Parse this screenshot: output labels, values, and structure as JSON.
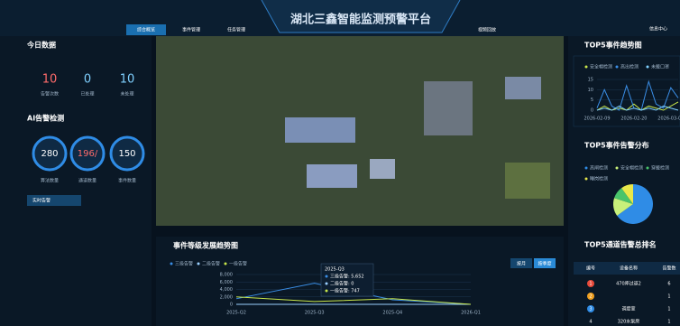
{
  "header": {
    "title": "湖北三鑫智能监测预警平台",
    "tabs": [
      "综合概览",
      "事件管理",
      "任务管理",
      "视频回放"
    ],
    "user": "信息中心"
  },
  "today": {
    "title": "今日数据",
    "items": [
      {
        "value": 10,
        "label": "告警次数"
      },
      {
        "value": 0,
        "label": "已处理"
      },
      {
        "value": 10,
        "label": "未处理"
      }
    ]
  },
  "ai": {
    "title": "AI告警检测",
    "items": [
      {
        "value": "280",
        "label": "算法数量"
      },
      {
        "value": "196/",
        "label": "通道数量"
      },
      {
        "value": "150",
        "label": "事件数量"
      }
    ],
    "button": "实时告警"
  },
  "trend": {
    "type": "line",
    "title": "事件等级发展趋势图",
    "buttons": [
      "按月",
      "按季度"
    ],
    "categories": [
      "2025-Q2",
      "2025-Q3",
      "2025-Q4",
      "2026-Q1"
    ],
    "series": [
      {
        "name": "三级告警",
        "color": "#3a8ee6",
        "values": [
          1500,
          5652,
          1200,
          0
        ]
      },
      {
        "name": "二级告警",
        "color": "#9ad0ff",
        "values": [
          0,
          0,
          0,
          0
        ]
      },
      {
        "name": "一级告警",
        "color": "#c8e64a",
        "values": [
          2000,
          747,
          1500,
          0
        ]
      }
    ],
    "ylim": [
      0,
      8000
    ],
    "yticks": [
      {
        "value": 0,
        "label": "0"
      },
      {
        "value": 2000,
        "label": "2,000"
      },
      {
        "value": 4000,
        "label": "4,000"
      },
      {
        "value": 6000,
        "label": "6,000"
      },
      {
        "value": 8000,
        "label": "8,000"
      }
    ],
    "tooltip": {
      "title": "2025-Q3",
      "items": [
        "三级告警: 5,652",
        "二级告警: 0",
        "一级告警: 747"
      ]
    }
  },
  "top5trend": {
    "type": "line",
    "title": "TOP5事件趋势图",
    "categories": [
      "2026-02-09",
      null,
      null,
      null,
      null,
      "2026-02-20",
      null,
      null,
      null,
      null,
      "2026-03-03",
      null
    ],
    "series": [
      {
        "name": "安全帽检测",
        "color": "#c8e64a",
        "values": [
          0,
          2,
          0,
          1,
          0,
          3,
          0,
          2,
          1,
          0,
          2,
          4
        ]
      },
      {
        "name": "高出检测",
        "color": "#3a8ee6",
        "values": [
          1,
          10,
          2,
          0,
          12,
          1,
          0,
          14,
          3,
          1,
          11,
          6
        ]
      },
      {
        "name": "未戴口罩",
        "color": "#7fd0ff",
        "values": [
          0,
          1,
          0,
          2,
          0,
          1,
          0,
          1,
          0,
          2,
          1,
          0
        ]
      }
    ],
    "ylim": [
      0,
      15
    ],
    "yticks": [
      0,
      5,
      10,
      15
    ]
  },
  "dist": {
    "type": "pie",
    "title": "TOP5事件告警分布",
    "series": [
      {
        "name": "高闸检测",
        "color": "#2f8ce6",
        "value": 65
      },
      {
        "name": "安全帽检测",
        "color": "#c8f07a",
        "value": 15
      },
      {
        "name": "穿戴检测",
        "color": "#49c46a",
        "value": 10
      },
      {
        "name": "睡岗检测",
        "color": "#e8e84a",
        "value": 10
      }
    ]
  },
  "ranking": {
    "title": "TOP5通道告警总排名",
    "columns": [
      "编号",
      "设备名称",
      "告警数"
    ],
    "rows": [
      [
        1,
        "470库过道2",
        6
      ],
      [
        2,
        null,
        1
      ],
      [
        3,
        "调度室",
        1
      ],
      [
        4,
        "320水泵房",
        1
      ]
    ]
  }
}
